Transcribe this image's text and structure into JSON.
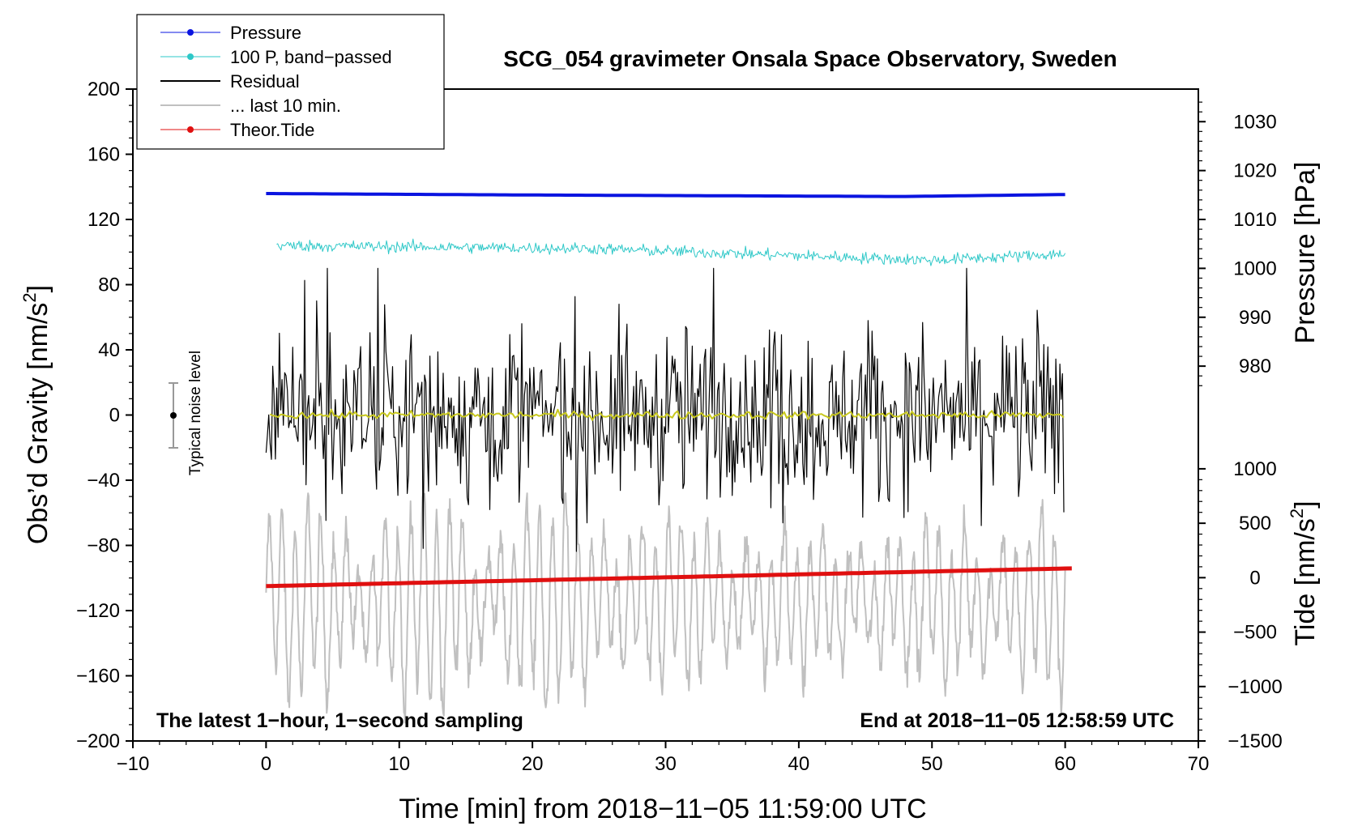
{
  "chart_data": {
    "type": "line",
    "title": "SCG_054 gravimeter Onsala Space Observatory, Sweden",
    "xlabel": "Time [min] from 2018−11−05 11:59:00 UTC",
    "ylabel_left": "Obs’d Gravity [nm/s",
    "ylabel_left_sup": "2",
    "ylabel_left_close": "]",
    "ylabel_pressure": "Pressure [hPa]",
    "ylabel_tide": "Tide [nm/s",
    "ylabel_tide_sup": "2",
    "ylabel_tide_close": "]",
    "xlim": [
      -10,
      70
    ],
    "ylim": [
      -200,
      200
    ],
    "x_ticks": [
      "−10",
      "0",
      "10",
      "20",
      "30",
      "40",
      "50",
      "60",
      "70"
    ],
    "x_tick_values": [
      -10,
      0,
      10,
      20,
      30,
      40,
      50,
      60,
      70
    ],
    "y_ticks": [
      "200",
      "160",
      "120",
      "80",
      "40",
      "0",
      "−40",
      "−80",
      "−120",
      "−160",
      "−200"
    ],
    "y_tick_values": [
      200,
      160,
      120,
      80,
      40,
      0,
      -40,
      -80,
      -120,
      -160,
      -200
    ],
    "pressure_ticks": [
      "1030",
      "1020",
      "1010",
      "1000",
      "990",
      "980"
    ],
    "pressure_tick_values": [
      1030,
      1020,
      1010,
      1000,
      990,
      980
    ],
    "pressure_axis_map": {
      "hpa": [
        980,
        1030
      ],
      "gravity": [
        30,
        180
      ]
    },
    "tide_ticks": [
      "1000",
      "500",
      "0",
      "−500",
      "−1000",
      "−1500"
    ],
    "tide_tick_values": [
      1000,
      500,
      0,
      -500,
      -1000,
      -1500
    ],
    "tide_axis_map": {
      "tide": [
        -1500,
        1000
      ],
      "gravity": [
        -200,
        -33
      ]
    },
    "annotation_left": "The latest 1−hour, 1−second sampling",
    "annotation_right": "End at 2018−11−05 12:58:59 UTC",
    "noise_label": "Typical noise level",
    "noise_bar": {
      "x": -7,
      "center": 0,
      "half_range": 20
    },
    "legend": [
      {
        "label": "Pressure",
        "color": "#0a14e0",
        "marker": true,
        "width": 1
      },
      {
        "label": "100 P, band−passed",
        "color": "#2ec8c8",
        "marker": true,
        "width": 1
      },
      {
        "label": "Residual",
        "color": "#000000",
        "marker": false,
        "width": 2
      },
      {
        "label": "... last 10 min.",
        "color": "#c0c0c0",
        "marker": false,
        "width": 2
      },
      {
        "label": "Theor.Tide",
        "color": "#e01010",
        "marker": true,
        "width": 1
      }
    ],
    "series": [
      {
        "name": "Pressure",
        "color": "#0a14e0",
        "approx_hpa": [
          1015.3,
          1015.0,
          1014.7,
          1015.1
        ],
        "x": [
          0,
          20,
          48,
          60
        ]
      },
      {
        "name": "100 P, band-passed",
        "color": "#2ec8c8",
        "approx_level": [
          104,
          102,
          96,
          99
        ],
        "x": [
          1,
          25,
          50,
          60
        ]
      },
      {
        "name": "Residual",
        "color": "#000000",
        "center": 0,
        "amplitude_range": [
          -86,
          90
        ]
      },
      {
        "name": "Residual smoothed",
        "color": "#c8c81e",
        "center": 0
      },
      {
        "name": "... last 10 min.",
        "color": "#c0c0c0",
        "center": -115,
        "amplitude_range": [
          -200,
          -50
        ]
      },
      {
        "name": "Theor.Tide",
        "color": "#e01010",
        "x": [
          0,
          61
        ],
        "approx_gravity": [
          -105,
          -94
        ]
      }
    ]
  }
}
